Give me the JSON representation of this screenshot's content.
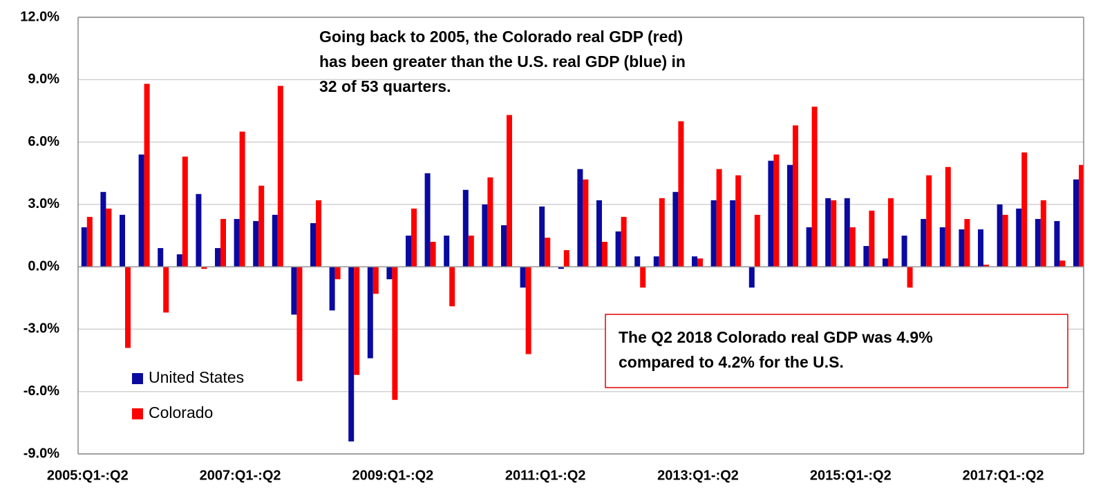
{
  "chart_data": {
    "type": "bar",
    "categories": [
      "2005:Q1-:Q2",
      null,
      null,
      null,
      null,
      null,
      null,
      null,
      "2007:Q1-:Q2",
      null,
      null,
      null,
      null,
      null,
      null,
      null,
      "2009:Q1-:Q2",
      null,
      null,
      null,
      null,
      null,
      null,
      null,
      "2011:Q1-:Q2",
      null,
      null,
      null,
      null,
      null,
      null,
      null,
      "2013:Q1-:Q2",
      null,
      null,
      null,
      null,
      null,
      null,
      null,
      "2015:Q1-:Q2",
      null,
      null,
      null,
      null,
      null,
      null,
      null,
      "2017:Q1-:Q2",
      null,
      null,
      null,
      null
    ],
    "series": [
      {
        "name": "United States",
        "color": "#0a0aa0",
        "values": [
          1.9,
          3.6,
          2.5,
          5.4,
          0.9,
          0.6,
          3.5,
          0.9,
          2.3,
          2.2,
          2.5,
          -2.3,
          2.1,
          -2.1,
          -8.4,
          -4.4,
          -0.6,
          1.5,
          4.5,
          1.5,
          3.7,
          3.0,
          2.0,
          -1.0,
          2.9,
          -0.1,
          4.7,
          3.2,
          1.7,
          0.5,
          0.5,
          3.6,
          0.5,
          3.2,
          3.2,
          -1.0,
          5.1,
          4.9,
          1.9,
          3.3,
          3.3,
          1.0,
          0.4,
          1.5,
          2.3,
          1.9,
          1.8,
          1.8,
          3.0,
          2.8,
          2.3,
          2.2,
          4.2
        ]
      },
      {
        "name": "Colorado",
        "color": "#ff0000",
        "values": [
          2.4,
          2.8,
          -3.9,
          8.8,
          -2.2,
          5.3,
          -0.1,
          2.3,
          6.5,
          3.9,
          8.7,
          -5.5,
          3.2,
          -0.6,
          -5.2,
          -1.3,
          -6.4,
          2.8,
          1.2,
          -1.9,
          1.5,
          4.3,
          7.3,
          -4.2,
          1.4,
          0.8,
          4.2,
          1.2,
          2.4,
          -1.0,
          3.3,
          7.0,
          0.4,
          4.7,
          4.4,
          2.5,
          5.4,
          6.8,
          7.7,
          3.2,
          1.9,
          2.7,
          3.3,
          -1.0,
          4.4,
          4.8,
          2.3,
          0.1,
          2.5,
          5.5,
          3.2,
          0.3,
          4.9
        ]
      }
    ],
    "ylim": [
      -9,
      12
    ],
    "yticks": [
      {
        "value": -9,
        "label": "-9.0%"
      },
      {
        "value": -6,
        "label": "-6.0%"
      },
      {
        "value": -3,
        "label": "-3.0%"
      },
      {
        "value": 0,
        "label": "0.0%"
      },
      {
        "value": 3,
        "label": "3.0%"
      },
      {
        "value": 6,
        "label": "6.0%"
      },
      {
        "value": 9,
        "label": "9.0%"
      },
      {
        "value": 12,
        "label": "12.0%"
      }
    ],
    "grid": true,
    "legend": "lower left",
    "annotations": [
      {
        "lines": [
          "Going back to 2005, the Colorado real GDP (red)",
          "has been greater than the U.S. real GDP (blue) in",
          "32 of 53 quarters."
        ]
      },
      {
        "lines": [
          "The Q2 2018 Colorado real GDP was 4.9%",
          "compared to 4.2% for the U.S."
        ]
      }
    ]
  }
}
